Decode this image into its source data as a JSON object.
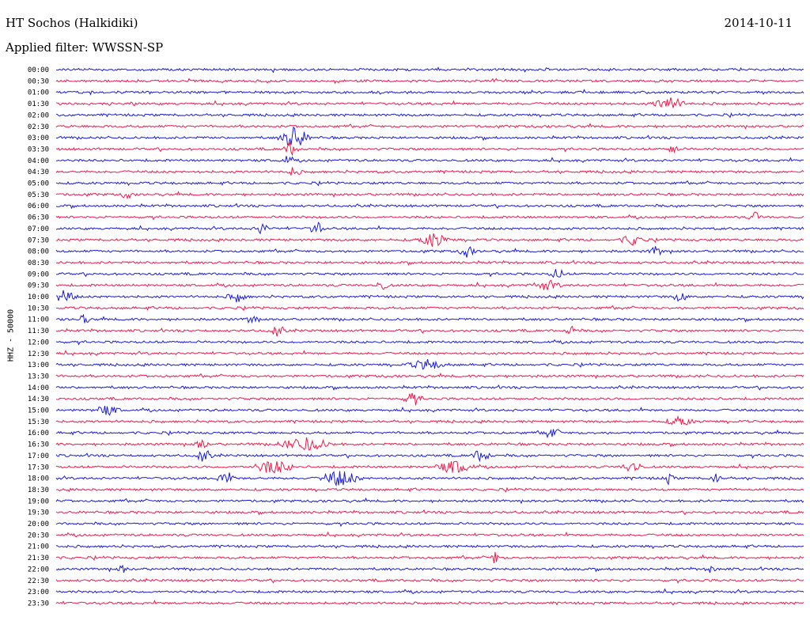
{
  "header": {
    "station": "HT Sochos (Halkidiki)",
    "date": "2014-10-11",
    "filter": "Applied filter: WWSSN-SP"
  },
  "colors": {
    "blue": "#1a1adb",
    "red": "#ee1a4c"
  },
  "chart_data": {
    "type": "line",
    "title": "HT Sochos (Halkidiki)",
    "date": "2014-10-11",
    "ylabel": "HHZ - 50000",
    "xlabel": "",
    "grid": false,
    "rows": [
      {
        "time": "00:00",
        "color": "blue"
      },
      {
        "time": "00:30",
        "color": "red"
      },
      {
        "time": "01:00",
        "color": "blue"
      },
      {
        "time": "01:30",
        "color": "red"
      },
      {
        "time": "02:00",
        "color": "blue"
      },
      {
        "time": "02:30",
        "color": "red"
      },
      {
        "time": "03:00",
        "color": "blue"
      },
      {
        "time": "03:30",
        "color": "red"
      },
      {
        "time": "04:00",
        "color": "blue"
      },
      {
        "time": "04:30",
        "color": "red"
      },
      {
        "time": "05:00",
        "color": "blue"
      },
      {
        "time": "05:30",
        "color": "red"
      },
      {
        "time": "06:00",
        "color": "blue"
      },
      {
        "time": "06:30",
        "color": "red"
      },
      {
        "time": "07:00",
        "color": "blue"
      },
      {
        "time": "07:30",
        "color": "red"
      },
      {
        "time": "08:00",
        "color": "blue"
      },
      {
        "time": "08:30",
        "color": "red"
      },
      {
        "time": "09:00",
        "color": "blue"
      },
      {
        "time": "09:30",
        "color": "red"
      },
      {
        "time": "10:00",
        "color": "blue"
      },
      {
        "time": "10:30",
        "color": "red"
      },
      {
        "time": "11:00",
        "color": "blue"
      },
      {
        "time": "11:30",
        "color": "red"
      },
      {
        "time": "12:00",
        "color": "blue"
      },
      {
        "time": "12:30",
        "color": "red"
      },
      {
        "time": "13:00",
        "color": "blue"
      },
      {
        "time": "13:30",
        "color": "red"
      },
      {
        "time": "14:00",
        "color": "blue"
      },
      {
        "time": "14:30",
        "color": "red"
      },
      {
        "time": "15:00",
        "color": "blue"
      },
      {
        "time": "15:30",
        "color": "red"
      },
      {
        "time": "16:00",
        "color": "blue"
      },
      {
        "time": "16:30",
        "color": "red"
      },
      {
        "time": "17:00",
        "color": "blue"
      },
      {
        "time": "17:30",
        "color": "red"
      },
      {
        "time": "18:00",
        "color": "blue"
      },
      {
        "time": "18:30",
        "color": "red"
      },
      {
        "time": "19:00",
        "color": "blue"
      },
      {
        "time": "19:30",
        "color": "red"
      },
      {
        "time": "20:00",
        "color": "blue"
      },
      {
        "time": "20:30",
        "color": "red"
      },
      {
        "time": "21:00",
        "color": "blue"
      },
      {
        "time": "21:30",
        "color": "red"
      },
      {
        "time": "22:00",
        "color": "blue"
      },
      {
        "time": "22:30",
        "color": "red"
      },
      {
        "time": "23:00",
        "color": "blue"
      },
      {
        "time": "23:30",
        "color": "red"
      }
    ]
  }
}
